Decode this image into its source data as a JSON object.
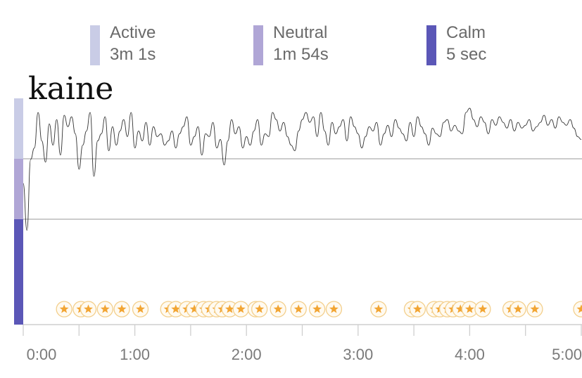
{
  "legend": [
    {
      "label": "Active",
      "value": "3m 1s",
      "color": "#c9cce6"
    },
    {
      "label": "Neutral",
      "value": "1m 54s",
      "color": "#b0a6d6"
    },
    {
      "label": "Calm",
      "value": "5 sec",
      "color": "#5b57b7"
    }
  ],
  "title": "kaine",
  "chart_data": {
    "type": "line",
    "title": "kaine",
    "xlabel": "",
    "ylabel": "",
    "xlim": [
      0,
      300
    ],
    "x_ticks": [
      "0:00",
      "1:00",
      "2:00",
      "3:00",
      "4:00",
      "5:00"
    ],
    "x_tick_values": [
      0,
      60,
      120,
      180,
      240,
      300
    ],
    "bands": [
      {
        "name": "Active",
        "color": "#c9cce6"
      },
      {
        "name": "Neutral",
        "color": "#b0a6d6"
      },
      {
        "name": "Calm",
        "color": "#5b57b7"
      }
    ],
    "line_color": "#333333",
    "series_x": [
      0,
      2,
      4,
      6,
      8,
      10,
      12,
      14,
      16,
      18,
      20,
      22,
      24,
      26,
      28,
      30,
      32,
      34,
      36,
      38,
      40,
      42,
      44,
      46,
      48,
      50,
      52,
      54,
      56,
      58,
      60,
      62,
      64,
      66,
      68,
      70,
      72,
      74,
      76,
      78,
      80,
      82,
      84,
      86,
      88,
      90,
      92,
      94,
      96,
      98,
      100,
      102,
      104,
      106,
      108,
      110,
      112,
      114,
      116,
      118,
      120,
      122,
      124,
      126,
      128,
      130,
      132,
      134,
      136,
      138,
      140,
      142,
      144,
      146,
      148,
      150,
      152,
      154,
      156,
      158,
      160,
      162,
      164,
      166,
      168,
      170,
      172,
      174,
      176,
      178,
      180,
      182,
      184,
      186,
      188,
      190,
      192,
      194,
      196,
      198,
      200,
      202,
      204,
      206,
      208,
      210,
      212,
      214,
      216,
      218,
      220,
      222,
      224,
      226,
      228,
      230,
      232,
      234,
      236,
      238,
      240,
      242,
      244,
      246,
      248,
      250,
      252,
      254,
      256,
      258,
      260,
      262,
      264,
      266,
      268,
      270,
      272,
      274,
      276,
      278,
      280,
      282,
      284,
      286,
      288,
      290,
      292,
      294,
      296,
      298,
      300
    ],
    "series_y": [
      0.45,
      0.12,
      0.62,
      0.7,
      0.95,
      0.75,
      0.6,
      0.87,
      0.72,
      0.9,
      0.65,
      0.93,
      0.85,
      0.92,
      0.8,
      0.55,
      0.72,
      0.82,
      0.95,
      0.5,
      0.75,
      0.8,
      0.92,
      0.68,
      0.85,
      0.72,
      0.82,
      0.9,
      0.78,
      0.95,
      0.7,
      0.82,
      0.75,
      0.88,
      0.72,
      0.85,
      0.78,
      0.8,
      0.72,
      0.75,
      0.82,
      0.7,
      0.8,
      0.85,
      0.92,
      0.72,
      0.78,
      0.85,
      0.65,
      0.8,
      0.78,
      0.88,
      0.7,
      0.76,
      0.58,
      0.75,
      0.9,
      0.8,
      0.85,
      0.7,
      0.78,
      0.72,
      0.82,
      0.9,
      0.72,
      0.8,
      0.78,
      0.95,
      0.9,
      0.82,
      0.88,
      0.78,
      0.72,
      0.68,
      0.82,
      0.9,
      0.95,
      0.88,
      0.92,
      0.78,
      0.95,
      0.82,
      0.72,
      0.88,
      0.8,
      0.85,
      0.9,
      0.75,
      0.92,
      0.85,
      0.8,
      0.7,
      0.78,
      0.85,
      0.82,
      0.88,
      0.72,
      0.8,
      0.86,
      0.78,
      0.9,
      0.84,
      0.8,
      0.75,
      0.88,
      0.78,
      0.92,
      0.85,
      0.8,
      0.72,
      0.84,
      0.8,
      0.78,
      0.88,
      0.9,
      0.82,
      0.86,
      0.82,
      0.8,
      0.95,
      0.98,
      0.9,
      0.85,
      0.92,
      0.88,
      0.8,
      0.9,
      0.86,
      0.92,
      0.88,
      0.84,
      0.9,
      0.82,
      0.88,
      0.84,
      0.86,
      0.9,
      0.82,
      0.85,
      0.88,
      0.93,
      0.86,
      0.9,
      0.84,
      0.92,
      0.88,
      0.86,
      0.9,
      0.84,
      0.78,
      0.76
    ],
    "star_x": [
      22,
      31,
      35,
      44,
      53,
      63,
      78,
      82,
      88,
      92,
      97,
      100,
      104,
      107,
      111,
      117,
      125,
      127,
      137,
      148,
      158,
      167,
      191,
      209,
      212,
      221,
      224,
      228,
      231,
      235,
      240,
      247,
      262,
      266,
      275,
      300
    ]
  }
}
